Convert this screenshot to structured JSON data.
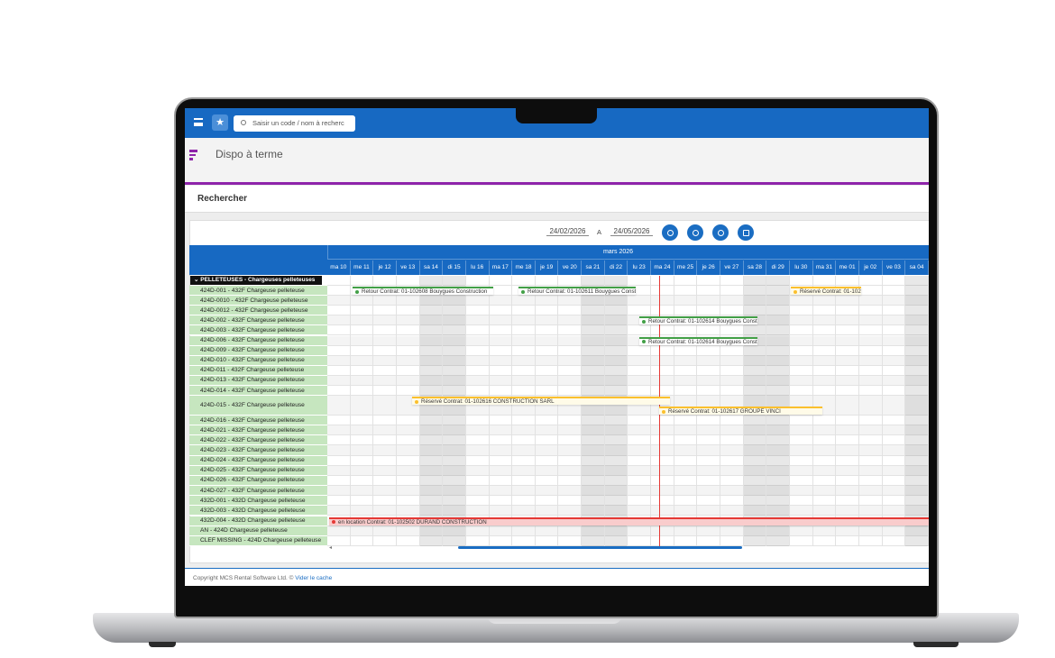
{
  "toolbar": {
    "search_placeholder": "Saisir un code / nom à recherc"
  },
  "header": {
    "title": "Dispo à terme"
  },
  "search_panel": {
    "title": "Rechercher"
  },
  "date_range": {
    "from": "24/02/2026",
    "separator": "A",
    "to": "24/05/2026"
  },
  "gantt": {
    "month": "mars 2026",
    "days": [
      "ma 10",
      "me 11",
      "je 12",
      "ve 13",
      "sa 14",
      "di 15",
      "lu 16",
      "ma 17",
      "me 18",
      "je 19",
      "ve 20",
      "sa 21",
      "di 22",
      "lu 23",
      "ma 24",
      "me 25",
      "je 26",
      "ve 27",
      "sa 28",
      "di 29",
      "lu 30",
      "ma 31",
      "me 01",
      "je 02",
      "ve 03",
      "sa 04"
    ],
    "group": "PELLETEUSES - Chargeuses pelleteuses",
    "rows": [
      {
        "label": "424D-001 - 432F Chargeuse pelleteuse",
        "bookings": [
          "Retour Contrat: 01-102608 Bouygues Construction",
          "Retour Contrat: 01-102611 Bouygues Const",
          "Réservé Contrat: 01-1026"
        ]
      },
      {
        "label": "424D-0010 - 432F Chargeuse pelleteuse"
      },
      {
        "label": "424D-0012 - 432F Chargeuse pelleteuse"
      },
      {
        "label": "424D-002 - 432F Chargeuse pelleteuse",
        "bookings": [
          "Retour Contrat: 01-102614 Bouygues Const"
        ]
      },
      {
        "label": "424D-003 - 432F Chargeuse pelleteuse"
      },
      {
        "label": "424D-006 - 432F Chargeuse pelleteuse",
        "bookings": [
          "Retour Contrat: 01-102614 Bouygues Const"
        ]
      },
      {
        "label": "424D-009 - 432F Chargeuse pelleteuse"
      },
      {
        "label": "424D-010 - 432F Chargeuse pelleteuse"
      },
      {
        "label": "424D-011 - 432F Chargeuse pelleteuse"
      },
      {
        "label": "424D-013 - 432F Chargeuse pelleteuse"
      },
      {
        "label": "424D-014 - 432F Chargeuse pelleteuse"
      },
      {
        "label": "424D-015 - 432F Chargeuse pelleteuse",
        "bookings": [
          "Réservé Contrat: 01-102616 CONSTRUCTION SARL",
          "Réservé Contrat: 01-102617 GROUPE VINCI"
        ]
      },
      {
        "label": "424D-016 - 432F Chargeuse pelleteuse"
      },
      {
        "label": "424D-021 - 432F Chargeuse pelleteuse"
      },
      {
        "label": "424D-022 - 432F Chargeuse pelleteuse"
      },
      {
        "label": "424D-023 - 432F Chargeuse pelleteuse"
      },
      {
        "label": "424D-024 - 432F Chargeuse pelleteuse"
      },
      {
        "label": "424D-025 - 432F Chargeuse pelleteuse"
      },
      {
        "label": "424D-026 - 432F Chargeuse pelleteuse"
      },
      {
        "label": "424D-027 - 432F Chargeuse pelleteuse"
      },
      {
        "label": "432D-001 - 432D Chargeuse pelleteuse"
      },
      {
        "label": "432D-003 - 432D Chargeuse pelleteuse"
      },
      {
        "label": "432D-004 - 432D Chargeuse pelleteuse",
        "bookings": [
          "en location Contrat: 01-102502 DURAND CONSTRUCTION"
        ]
      },
      {
        "label": "AN - 424D Chargeuse pelleteuse"
      },
      {
        "label": "CLEF MISSING - 424D Chargeuse pelleteuse"
      }
    ]
  },
  "footer": {
    "copyright": "Copyright MCS Rental Software Ltd. ©",
    "link": "Vider le cache"
  }
}
